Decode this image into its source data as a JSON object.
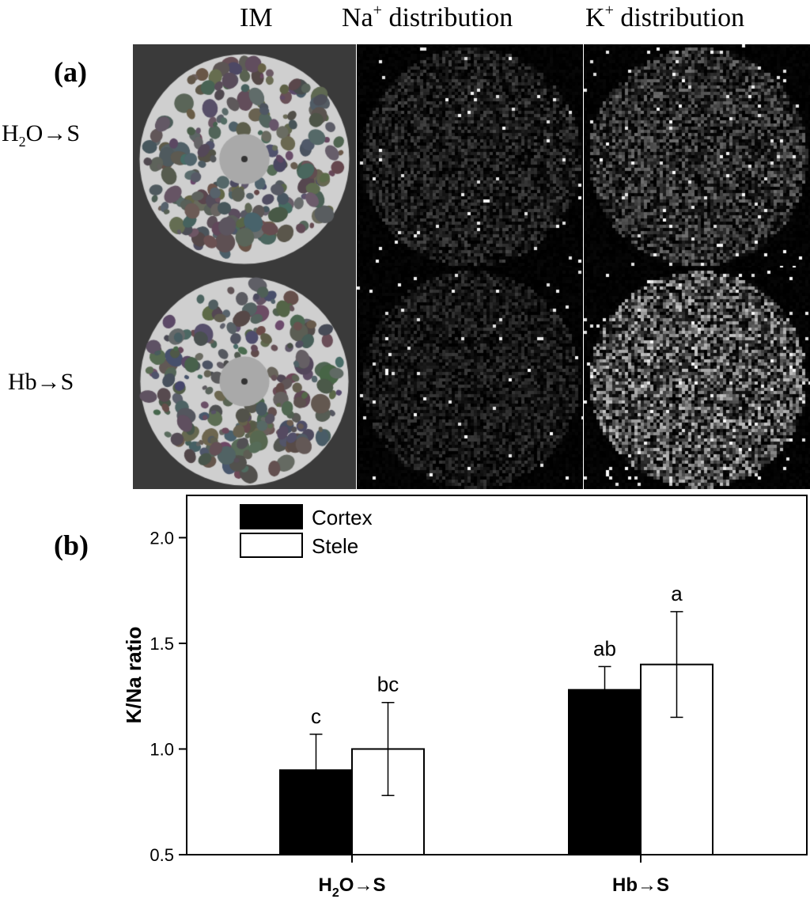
{
  "figure": {
    "panel_a": {
      "label": "(a)",
      "column_headers": {
        "im": "IM",
        "na": {
          "ion": "Na",
          "charge": "+",
          "rest": " distribution"
        },
        "k": {
          "ion": "K",
          "charge": "+",
          "rest": " distribution"
        }
      },
      "rows": [
        {
          "prefix": "H",
          "sub": "2",
          "suffix": "O→S"
        },
        {
          "prefix": "Hb→S",
          "sub": "",
          "suffix": ""
        }
      ],
      "image_tiles": [
        {
          "row": 0,
          "col": "im",
          "kind": "sem-root-cross-section"
        },
        {
          "row": 0,
          "col": "na",
          "kind": "element-map",
          "intensity": 0.45
        },
        {
          "row": 0,
          "col": "k",
          "kind": "element-map",
          "intensity": 0.6
        },
        {
          "row": 1,
          "col": "im",
          "kind": "sem-root-cross-section"
        },
        {
          "row": 1,
          "col": "na",
          "kind": "element-map",
          "intensity": 0.4
        },
        {
          "row": 1,
          "col": "k",
          "kind": "element-map",
          "intensity": 0.85
        }
      ]
    },
    "panel_b": {
      "label": "(b)"
    }
  },
  "chart_data": {
    "type": "bar",
    "title": "",
    "xlabel": "",
    "ylabel": "K/Na ratio",
    "ylim": [
      0.5,
      2.2
    ],
    "yticks": [
      "0.5",
      "1.0",
      "1.5",
      "2.0"
    ],
    "categories": [
      {
        "prefix": "H",
        "sub": "2",
        "suffix": "O→S"
      },
      {
        "prefix": "Hb→S",
        "sub": "",
        "suffix": ""
      }
    ],
    "series": [
      {
        "name": "Cortex",
        "color": "#000000",
        "values": [
          0.9,
          1.28
        ],
        "errors": [
          0.17,
          0.11
        ],
        "letters": [
          "c",
          "ab"
        ]
      },
      {
        "name": "Stele",
        "color": "#ffffff",
        "values": [
          1.0,
          1.4
        ],
        "errors": [
          0.22,
          0.25
        ],
        "letters": [
          "bc",
          "a"
        ]
      }
    ],
    "legend_position": "top-left",
    "grid": false
  }
}
